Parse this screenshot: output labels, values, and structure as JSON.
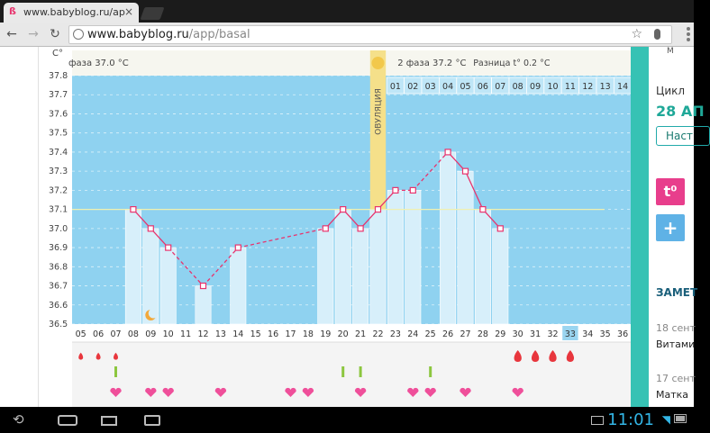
{
  "browser": {
    "tab_title": "www.babyblog.ru/ap",
    "tab_close": "×",
    "url_host": "www.babyblog.ru",
    "url_path": "/app/basal"
  },
  "chart_data": {
    "type": "bar",
    "yunit": "C°",
    "ylim": [
      36.5,
      37.8
    ],
    "yticks": [
      "36.5",
      "36.6",
      "36.7",
      "36.8",
      "36.9",
      "37.0",
      "37.1",
      "37.2",
      "37.3",
      "37.4",
      "37.5",
      "37.6",
      "37.7",
      "37.8"
    ],
    "coverline": 37.1,
    "phase1_label": "фаза 37.0 °C",
    "phase2_label": "2 фаза 37.2 °C",
    "diff_label": "Разница t° 0.2 °C",
    "ovulation_label": "ОВУЛЯЦИЯ",
    "ovulation_day": "22",
    "post_ov_days": [
      "01",
      "02",
      "03",
      "04",
      "05",
      "06",
      "07",
      "08",
      "09",
      "10",
      "11",
      "12",
      "13",
      "14"
    ],
    "days": [
      "05",
      "06",
      "07",
      "08",
      "09",
      "10",
      "11",
      "12",
      "13",
      "14",
      "15",
      "16",
      "17",
      "18",
      "19",
      "20",
      "21",
      "22",
      "23",
      "24",
      "25",
      "26",
      "27",
      "28",
      "29",
      "30",
      "31",
      "32",
      "33",
      "34",
      "35",
      "36"
    ],
    "current_day": "33",
    "temps": [
      null,
      null,
      null,
      37.1,
      37.0,
      36.9,
      null,
      36.7,
      null,
      36.9,
      null,
      null,
      null,
      null,
      37.0,
      37.1,
      37.0,
      37.1,
      37.2,
      37.2,
      null,
      37.4,
      37.3,
      37.1,
      37.0,
      null,
      null,
      null,
      null,
      null,
      null,
      null
    ],
    "line_points": [
      [
        3,
        37.1
      ],
      [
        4,
        37.0
      ],
      [
        5,
        36.9
      ],
      [
        7,
        36.7
      ],
      [
        9,
        36.9
      ],
      [
        14,
        37.0
      ],
      [
        15,
        37.1
      ],
      [
        16,
        37.0
      ],
      [
        17,
        37.1
      ],
      [
        18,
        37.2
      ],
      [
        19,
        37.2
      ],
      [
        21,
        37.4
      ],
      [
        22,
        37.3
      ],
      [
        23,
        37.1
      ],
      [
        24,
        37.0
      ]
    ],
    "dashed_segments": [
      [
        9,
        14
      ],
      [
        18,
        19
      ],
      [
        19,
        21
      ]
    ],
    "moon_day": 4,
    "drops_days": [
      0,
      1,
      2,
      25,
      26,
      27,
      28
    ],
    "green_marks_days": [
      2,
      15,
      16,
      20
    ],
    "hearts_days": [
      2,
      4,
      5,
      8,
      12,
      13,
      16,
      19,
      20,
      22,
      25
    ]
  },
  "right_panel": {
    "cycle_label": "Цикл",
    "date_label": "28 АП",
    "button_label": "Наст",
    "t_label": "t⁰",
    "plus_label": "+",
    "notes_heading": "ЗАМЕТ",
    "note1_date": "18 сент",
    "note1_text": "Витами",
    "note2_date": "17 сент",
    "note2_text": "Матка",
    "top_text": "М"
  },
  "system": {
    "clock": "11:01",
    "back_icon": "back-icon",
    "home_icon": "home-icon",
    "recents_icon": "recents-icon",
    "screenshot_icon": "camera-icon"
  },
  "colors": {
    "plot_bg": "#8fd2f0",
    "bar": "#d7effa",
    "line": "#e8336d",
    "ovulation": "#f5e08a",
    "accent": "#36c2b4"
  }
}
